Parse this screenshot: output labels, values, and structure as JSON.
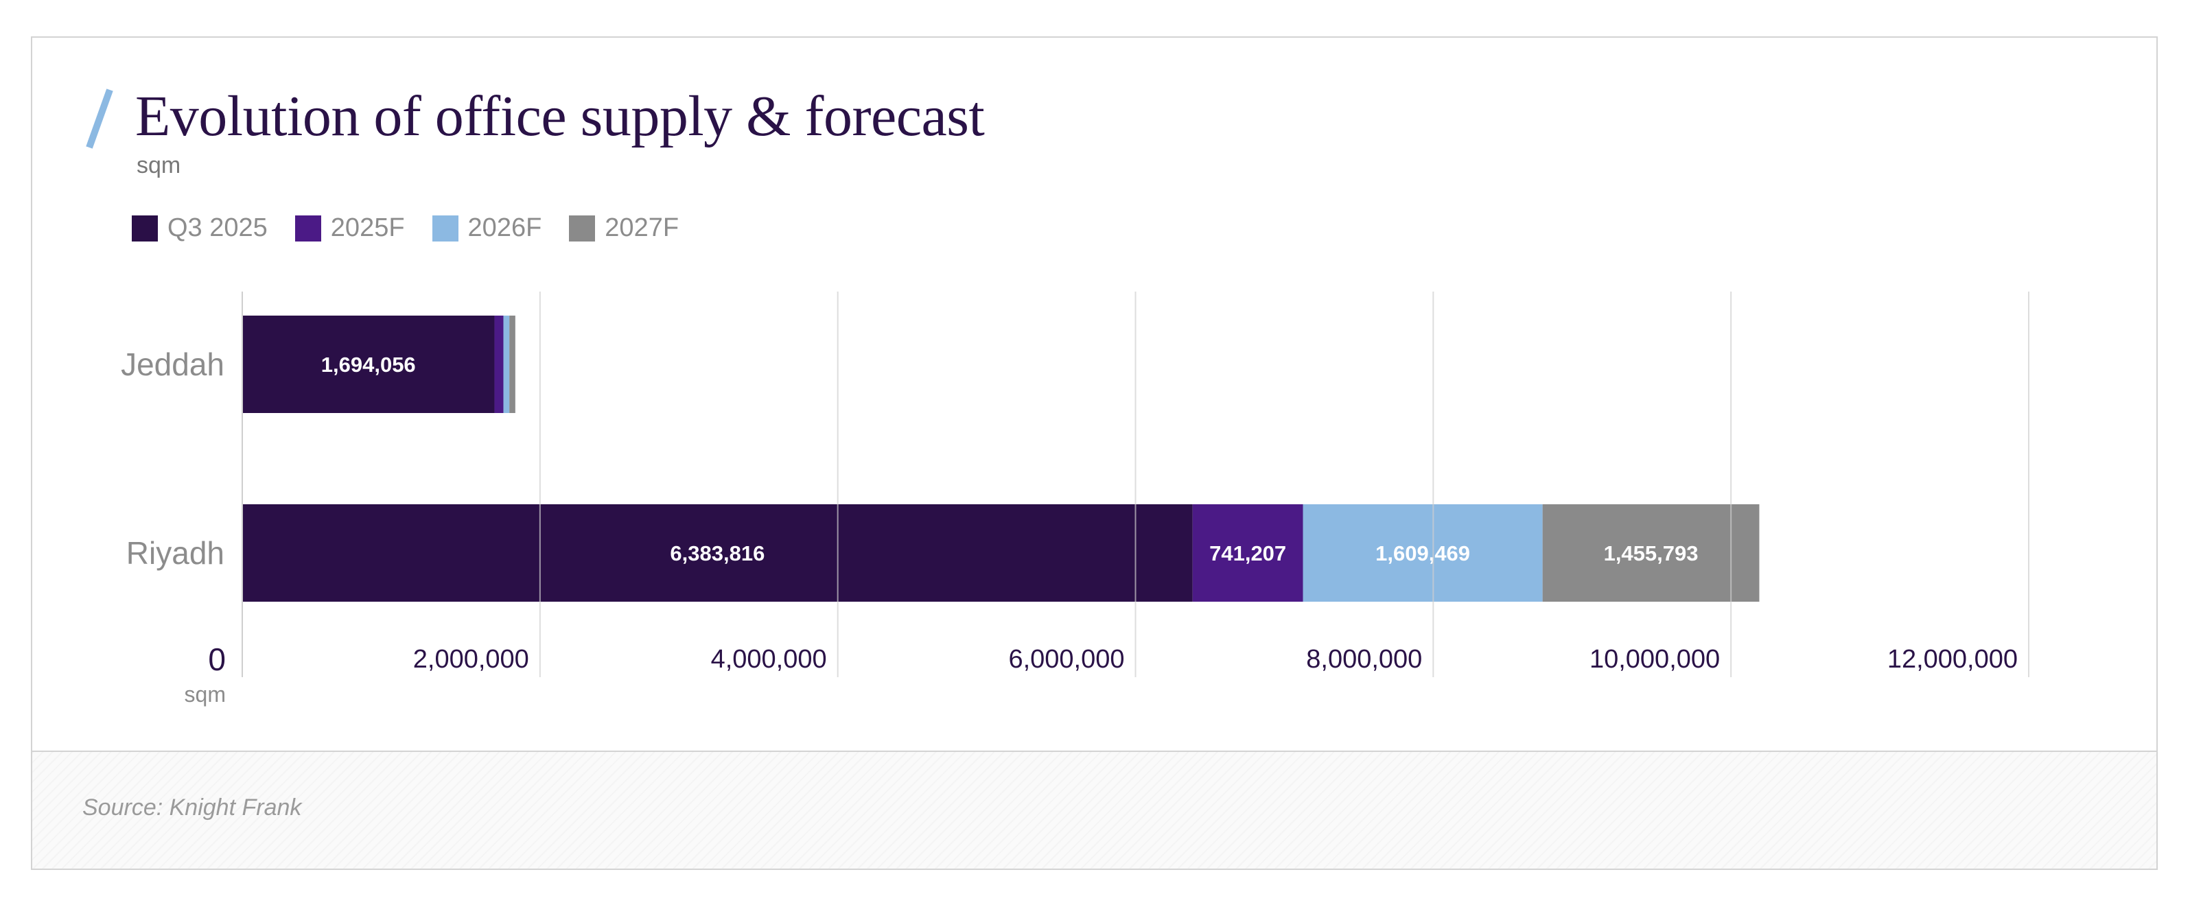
{
  "header": {
    "title": "Evolution of office supply & forecast",
    "subtitle": "sqm"
  },
  "footer": {
    "source": "Source: Knight Frank"
  },
  "colors": {
    "accent_slash": "#8cb9e2",
    "title": "#2a1247",
    "grid": "#cfcfcf"
  },
  "chart_data": {
    "type": "bar",
    "orientation": "horizontal",
    "stacked": true,
    "title": "Evolution of office supply & forecast",
    "xlabel": "sqm",
    "ylabel": "",
    "xlim": [
      0,
      12000000
    ],
    "x_ticks": [
      0,
      2000000,
      4000000,
      6000000,
      8000000,
      10000000,
      12000000
    ],
    "x_tick_labels": [
      "0",
      "2,000,000",
      "4,000,000",
      "6,000,000",
      "8,000,000",
      "10,000,000",
      "12,000,000"
    ],
    "x_unit_label": "sqm",
    "grid": true,
    "legend_position": "top-left",
    "categories": [
      "Jeddah",
      "Riyadh"
    ],
    "series": [
      {
        "name": "Q3 2025",
        "color": "#2a0f47",
        "values": [
          1694056,
          6383816
        ],
        "labels": [
          "1,694,056",
          "6,383,816"
        ]
      },
      {
        "name": "2025F",
        "color": "#4b1a86",
        "values": [
          60000,
          741207
        ],
        "labels": [
          "",
          "741,207"
        ]
      },
      {
        "name": "2026F",
        "color": "#8cb9e2",
        "values": [
          40000,
          1609469
        ],
        "labels": [
          "",
          "1,609,469"
        ]
      },
      {
        "name": "2027F",
        "color": "#8a8a8a",
        "values": [
          40000,
          1455793
        ],
        "labels": [
          "",
          "1,455,793"
        ]
      }
    ]
  }
}
